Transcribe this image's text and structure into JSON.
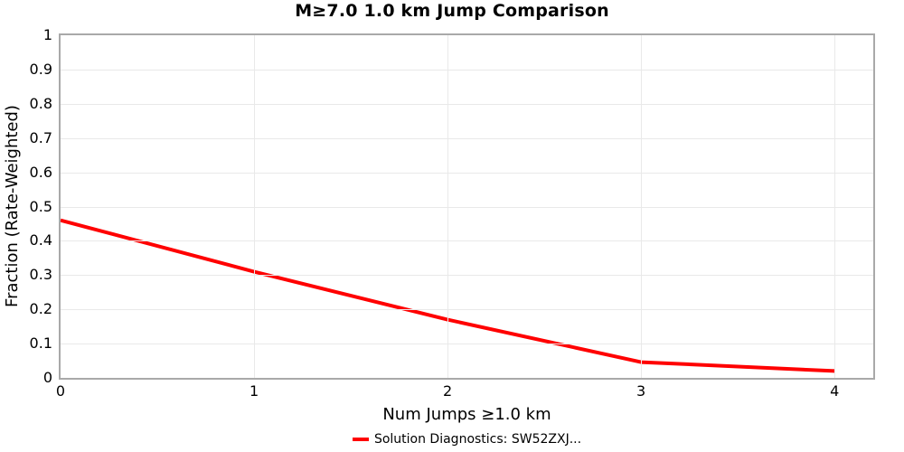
{
  "chart_data": {
    "type": "line",
    "title": "M≥7.0 1.0 km Jump Comparison",
    "xlabel": "Num Jumps ≥1.0 km",
    "ylabel": "Fraction (Rate-Weighted)",
    "x": [
      0,
      1,
      2,
      3,
      4
    ],
    "series": [
      {
        "name": "Solution Diagnostics: SW52ZXJ...",
        "color": "#ff0000",
        "line_width": 4,
        "values": [
          0.46,
          0.31,
          0.17,
          0.046,
          0.02
        ]
      }
    ],
    "xlim": [
      0,
      4.2
    ],
    "ylim": [
      0,
      1
    ],
    "x_ticks": [
      0,
      1,
      2,
      3,
      4
    ],
    "x_tick_labels": [
      "0",
      "1",
      "2",
      "3",
      "4"
    ],
    "y_ticks": [
      0,
      0.1,
      0.2,
      0.3,
      0.4,
      0.5,
      0.6,
      0.7,
      0.8,
      0.9,
      1
    ],
    "y_tick_labels": [
      "0",
      "0.1",
      "0.2",
      "0.3",
      "0.4",
      "0.5",
      "0.6",
      "0.7",
      "0.8",
      "0.9",
      "1"
    ],
    "grid": true,
    "legend_position": "bottom-center",
    "colors": {
      "background": "#ffffff",
      "plot_border": "#a9a9a9",
      "gridline": "#e9e9e9",
      "text": "#000000"
    }
  }
}
